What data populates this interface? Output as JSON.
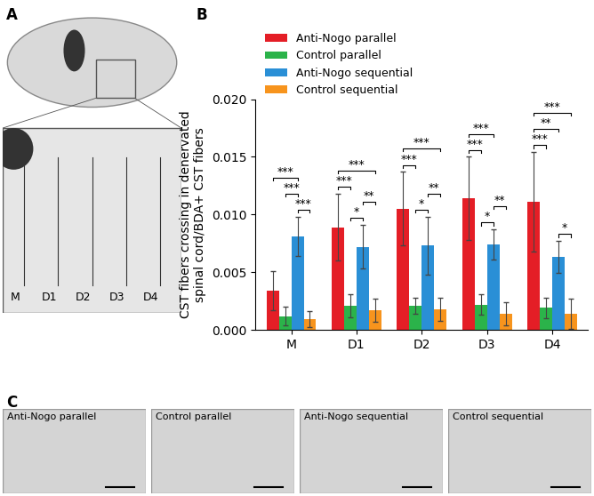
{
  "chart_data": {
    "type": "bar",
    "y_label": "CST fibers crossing in denervated\nspinal cord/BDA+ CST fibers",
    "categories": [
      "M",
      "D1",
      "D2",
      "D3",
      "D4"
    ],
    "series": [
      {
        "name": "Anti-Nogo parallel",
        "color": "#e41e26",
        "values": [
          0.0034,
          0.0089,
          0.0105,
          0.0114,
          0.0111
        ],
        "errors": [
          0.0017,
          0.0029,
          0.0032,
          0.0036,
          0.0043
        ]
      },
      {
        "name": "Control parallel",
        "color": "#2bb34a",
        "values": [
          0.0012,
          0.0021,
          0.0021,
          0.0022,
          0.0019
        ],
        "errors": [
          0.0008,
          0.001,
          0.0007,
          0.0009,
          0.0009
        ]
      },
      {
        "name": "Anti-Nogo sequential",
        "color": "#2a8fd6",
        "values": [
          0.0081,
          0.0072,
          0.0073,
          0.0074,
          0.0063
        ],
        "errors": [
          0.0017,
          0.0019,
          0.0025,
          0.0013,
          0.0014
        ]
      },
      {
        "name": "Control sequential",
        "color": "#f7941d",
        "values": [
          0.0009,
          0.0017,
          0.0018,
          0.0014,
          0.0014
        ],
        "errors": [
          0.0007,
          0.001,
          0.001,
          0.001,
          0.0013
        ]
      }
    ],
    "ylim": [
      0,
      0.02
    ],
    "yticks": [
      {
        "value": 0,
        "label": "0.000"
      },
      {
        "value": 0.005,
        "label": "0.005"
      },
      {
        "value": 0.01,
        "label": "0.010"
      },
      {
        "value": 0.015,
        "label": "0.015"
      },
      {
        "value": 0.02,
        "label": "0.020"
      }
    ],
    "legend": "upper left",
    "significance": [
      {
        "category": 0,
        "pair": [
          2,
          3
        ],
        "label": "***"
      },
      {
        "category": 0,
        "pair": [
          1,
          2
        ],
        "label": "***"
      },
      {
        "category": 0,
        "pair": [
          0,
          2
        ],
        "label": "***"
      },
      {
        "category": 1,
        "pair": [
          1,
          2
        ],
        "label": "*"
      },
      {
        "category": 1,
        "pair": [
          2,
          3
        ],
        "label": "**"
      },
      {
        "category": 1,
        "pair": [
          0,
          1
        ],
        "label": "***"
      },
      {
        "category": 1,
        "pair": [
          0,
          3
        ],
        "label": "***"
      },
      {
        "category": 2,
        "pair": [
          1,
          2
        ],
        "label": "*"
      },
      {
        "category": 2,
        "pair": [
          2,
          3
        ],
        "label": "**"
      },
      {
        "category": 2,
        "pair": [
          0,
          1
        ],
        "label": "***"
      },
      {
        "category": 2,
        "pair": [
          0,
          3
        ],
        "label": "***"
      },
      {
        "category": 3,
        "pair": [
          1,
          2
        ],
        "label": "*"
      },
      {
        "category": 3,
        "pair": [
          2,
          3
        ],
        "label": "**"
      },
      {
        "category": 3,
        "pair": [
          0,
          1
        ],
        "label": "***"
      },
      {
        "category": 3,
        "pair": [
          0,
          2
        ],
        "label": "***"
      },
      {
        "category": 4,
        "pair": [
          2,
          3
        ],
        "label": "*"
      },
      {
        "category": 4,
        "pair": [
          0,
          1
        ],
        "label": "***"
      },
      {
        "category": 4,
        "pair": [
          0,
          2
        ],
        "label": "**"
      },
      {
        "category": 4,
        "pair": [
          0,
          3
        ],
        "label": "***"
      }
    ]
  },
  "panels": {
    "labels": [
      "A",
      "B",
      "C"
    ],
    "A": {
      "regions": [
        "M",
        "D1",
        "D2",
        "D3",
        "D4"
      ]
    },
    "C": {
      "captions": [
        "Anti-Nogo parallel",
        "Control parallel",
        "Anti-Nogo sequential",
        "Control sequential"
      ]
    }
  }
}
